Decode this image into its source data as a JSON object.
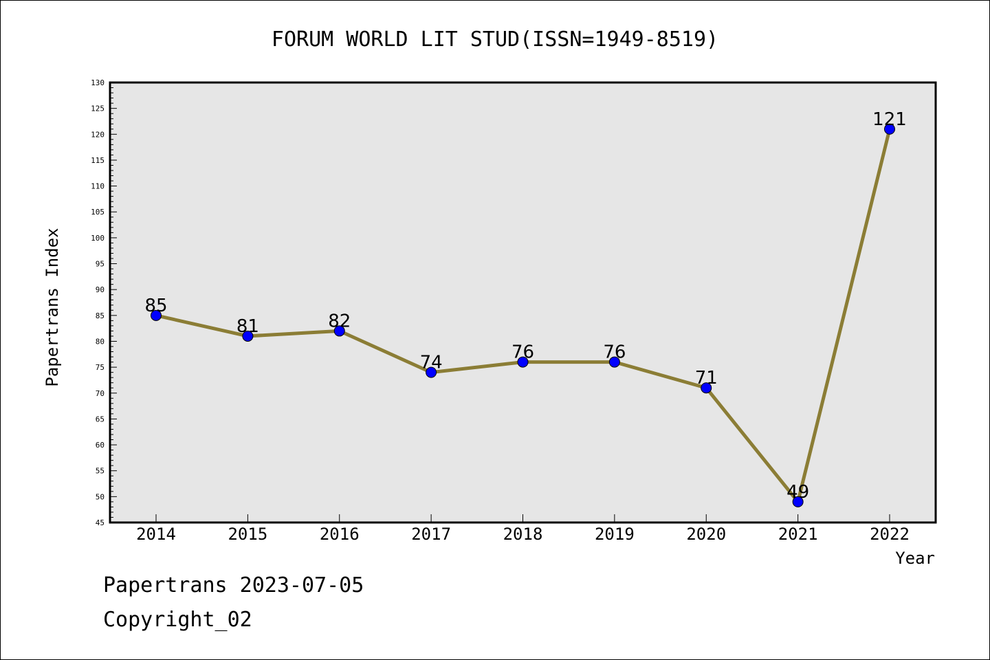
{
  "chart_data": {
    "type": "line",
    "title": "FORUM WORLD LIT STUD(ISSN=1949-8519)",
    "xlabel": "Year",
    "ylabel": "Papertrans Index",
    "categories": [
      "2014",
      "2015",
      "2016",
      "2017",
      "2018",
      "2019",
      "2020",
      "2021",
      "2022"
    ],
    "series": [
      {
        "values": [
          85,
          81,
          82,
          74,
          76,
          76,
          71,
          49,
          121
        ],
        "line_color": "#8b7d35",
        "marker_color": "#0000ff"
      }
    ],
    "data_labels": [
      "85",
      "81",
      "82",
      "74",
      "76",
      "76",
      "71",
      "49",
      "121"
    ],
    "ylim": [
      45,
      130
    ],
    "y_major_step": 5,
    "y_minor_step": 1,
    "y_ticks": [
      "45",
      "50",
      "55",
      "60",
      "65",
      "70",
      "75",
      "80",
      "85",
      "90",
      "95",
      "100",
      "105",
      "110",
      "115",
      "120",
      "125",
      "130"
    ],
    "grid": false,
    "legend": "none",
    "plot_background": "#e6e6e6"
  },
  "footer": {
    "date_text": "Papertrans 2023-07-05",
    "copyright_text": "Copyright_02"
  }
}
